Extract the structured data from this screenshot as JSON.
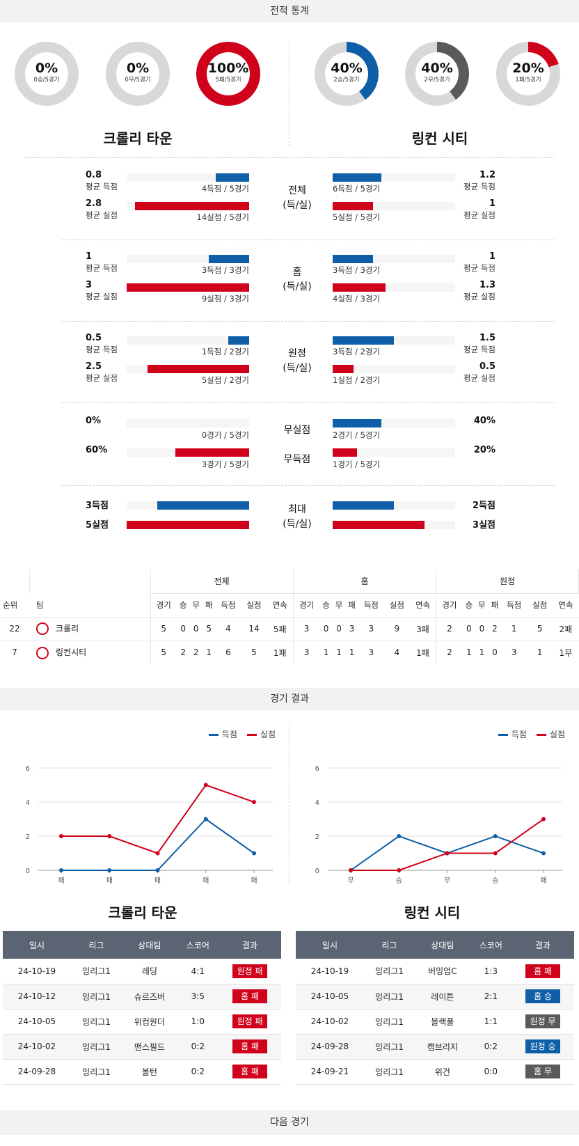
{
  "sections": {
    "stats": "전적 통계",
    "results": "경기 결과",
    "next": "다음 경기"
  },
  "teams": {
    "home": "크롤리 타운",
    "away": "링컨 시티"
  },
  "colors": {
    "blue": "#0f5fa8",
    "red": "#d0021b",
    "gray": "#5a5a5a",
    "track": "#d8d8d8"
  },
  "donuts": [
    {
      "pct": "0%",
      "sub": "0승/5경기",
      "value": 0,
      "color": "#d8d8d8"
    },
    {
      "pct": "0%",
      "sub": "0무/5경기",
      "value": 0,
      "color": "#d8d8d8"
    },
    {
      "pct": "100%",
      "sub": "5패/5경기",
      "value": 100,
      "color": "#d0021b"
    },
    {
      "pct": "40%",
      "sub": "2승/5경기",
      "value": 40,
      "color": "#0f5fa8"
    },
    {
      "pct": "40%",
      "sub": "2무/5경기",
      "value": 40,
      "color": "#5a5a5a"
    },
    {
      "pct": "20%",
      "sub": "1패/5경기",
      "value": 20,
      "color": "#d0021b"
    }
  ],
  "stat_groups": [
    {
      "label": "전체",
      "label2": "(득/실)",
      "left": [
        {
          "big": "0.8",
          "small": "평균 득점",
          "cap": "4득점 / 5경기",
          "fill": 0.27,
          "color": "blue"
        },
        {
          "big": "2.8",
          "small": "평균 실점",
          "cap": "14실점 / 5경기",
          "fill": 0.93,
          "color": "red"
        }
      ],
      "right": [
        {
          "big": "1.2",
          "small": "평균 득점",
          "cap": "6득점 / 5경기",
          "fill": 0.4,
          "color": "blue"
        },
        {
          "big": "1",
          "small": "평균 실점",
          "cap": "5실점 / 5경기",
          "fill": 0.33,
          "color": "red"
        }
      ]
    },
    {
      "label": "홈",
      "label2": "(득/실)",
      "left": [
        {
          "big": "1",
          "small": "평균 득점",
          "cap": "3득점 / 3경기",
          "fill": 0.33,
          "color": "blue"
        },
        {
          "big": "3",
          "small": "평균 실점",
          "cap": "9실점 / 3경기",
          "fill": 1,
          "color": "red"
        }
      ],
      "right": [
        {
          "big": "1",
          "small": "평균 득점",
          "cap": "3득점 / 3경기",
          "fill": 0.33,
          "color": "blue"
        },
        {
          "big": "1.3",
          "small": "평균 실점",
          "cap": "4실점 / 3경기",
          "fill": 0.43,
          "color": "red"
        }
      ]
    },
    {
      "label": "원정",
      "label2": "(득/실)",
      "left": [
        {
          "big": "0.5",
          "small": "평균 득점",
          "cap": "1득점 / 2경기",
          "fill": 0.17,
          "color": "blue"
        },
        {
          "big": "2.5",
          "small": "평균 실점",
          "cap": "5실점 / 2경기",
          "fill": 0.83,
          "color": "red"
        }
      ],
      "right": [
        {
          "big": "1.5",
          "small": "평균 득점",
          "cap": "3득점 / 2경기",
          "fill": 0.5,
          "color": "blue"
        },
        {
          "big": "0.5",
          "small": "평균 실점",
          "cap": "1실점 / 2경기",
          "fill": 0.17,
          "color": "red"
        }
      ]
    }
  ],
  "clean": {
    "label1": "무실점",
    "label2": "무득점",
    "left": [
      {
        "big": "0%",
        "cap": "0경기 / 5경기",
        "fill": 0,
        "color": "blue"
      },
      {
        "big": "60%",
        "cap": "3경기 / 5경기",
        "fill": 0.6,
        "color": "red"
      }
    ],
    "right": [
      {
        "big": "40%",
        "cap": "2경기 / 5경기",
        "fill": 0.4,
        "color": "blue"
      },
      {
        "big": "20%",
        "cap": "1경기 / 5경기",
        "fill": 0.2,
        "color": "red"
      }
    ]
  },
  "maxg": {
    "label": "최대",
    "label2": "(득/실)",
    "left": [
      {
        "big": "3득점",
        "fill": 0.75,
        "color": "blue"
      },
      {
        "big": "5실점",
        "fill": 1,
        "color": "red"
      }
    ],
    "right": [
      {
        "big": "2득점",
        "fill": 0.5,
        "color": "blue"
      },
      {
        "big": "3실점",
        "fill": 0.75,
        "color": "red"
      }
    ]
  },
  "standings": {
    "groups": [
      "전체",
      "홈",
      "원정"
    ],
    "cols": [
      "순위",
      "팀",
      "경기",
      "승",
      "무",
      "패",
      "득점",
      "실점",
      "연속",
      "경기",
      "승",
      "무",
      "패",
      "득점",
      "실점",
      "연속",
      "경기",
      "승",
      "무",
      "패",
      "득점",
      "실점",
      "연속"
    ],
    "rows": [
      [
        "22",
        "크롤리",
        "5",
        "0",
        "0",
        "5",
        "4",
        "14",
        "5패",
        "3",
        "0",
        "0",
        "3",
        "3",
        "9",
        "3패",
        "2",
        "0",
        "0",
        "2",
        "1",
        "5",
        "2패"
      ],
      [
        "7",
        "링컨시티",
        "5",
        "2",
        "2",
        "1",
        "6",
        "5",
        "1패",
        "3",
        "1",
        "1",
        "1",
        "3",
        "4",
        "1패",
        "2",
        "1",
        "1",
        "0",
        "3",
        "1",
        "1무"
      ]
    ]
  },
  "legend": {
    "scored": "득점",
    "conceded": "실점"
  },
  "chart_data": [
    {
      "type": "line",
      "categories": [
        "패",
        "패",
        "패",
        "패",
        "패"
      ],
      "ylim": [
        0,
        6
      ],
      "yticks": [
        0,
        2,
        4,
        6
      ],
      "series": [
        {
          "name": "득점",
          "values": [
            0,
            0,
            0,
            3,
            1
          ]
        },
        {
          "name": "실점",
          "values": [
            2,
            2,
            1,
            5,
            4
          ]
        }
      ]
    },
    {
      "type": "line",
      "categories": [
        "무",
        "승",
        "무",
        "승",
        "패"
      ],
      "ylim": [
        0,
        6
      ],
      "yticks": [
        0,
        2,
        4,
        6
      ],
      "series": [
        {
          "name": "득점",
          "values": [
            0,
            2,
            1,
            2,
            1
          ]
        },
        {
          "name": "실점",
          "values": [
            0,
            0,
            1,
            1,
            3
          ]
        }
      ]
    }
  ],
  "results": {
    "headers": [
      "일시",
      "리그",
      "상대팀",
      "스코어",
      "결과"
    ],
    "home": [
      [
        "24-10-19",
        "잉리그1",
        "레딩",
        "4:1",
        "원정 패",
        "red"
      ],
      [
        "24-10-12",
        "잉리그1",
        "슈르즈버",
        "3:5",
        "홈 패",
        "red"
      ],
      [
        "24-10-05",
        "잉리그1",
        "위컴원더",
        "1:0",
        "원정 패",
        "red"
      ],
      [
        "24-10-02",
        "잉리그1",
        "맨스필드",
        "0:2",
        "홈 패",
        "red"
      ],
      [
        "24-09-28",
        "잉리그1",
        "볼턴",
        "0:2",
        "홈 패",
        "red"
      ]
    ],
    "away": [
      [
        "24-10-19",
        "잉리그1",
        "버밍엄C",
        "1:3",
        "홈 패",
        "red"
      ],
      [
        "24-10-05",
        "잉리그1",
        "레이튼",
        "2:1",
        "홈 승",
        "blue"
      ],
      [
        "24-10-02",
        "잉리그1",
        "블랙풀",
        "1:1",
        "원정 무",
        "gray"
      ],
      [
        "24-09-28",
        "잉리그1",
        "캠브리지",
        "0:2",
        "원정 승",
        "blue"
      ],
      [
        "24-09-21",
        "잉리그1",
        "위건",
        "0:0",
        "홈 무",
        "gray"
      ]
    ]
  }
}
